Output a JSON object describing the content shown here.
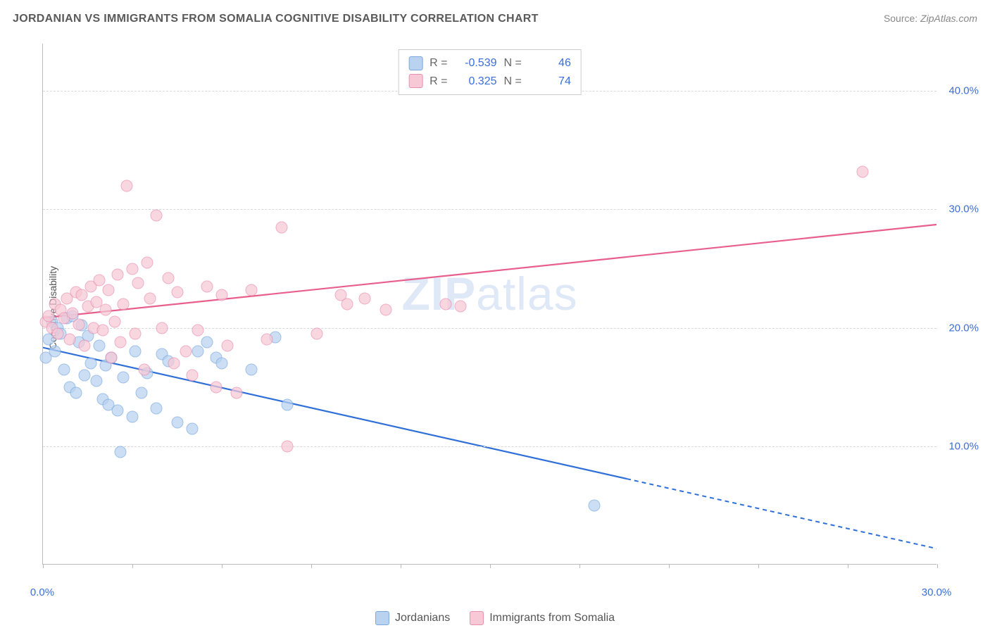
{
  "title": "JORDANIAN VS IMMIGRANTS FROM SOMALIA COGNITIVE DISABILITY CORRELATION CHART",
  "source_prefix": "Source: ",
  "source_name": "ZipAtlas.com",
  "y_axis_label": "Cognitive Disability",
  "watermark_bold": "ZIP",
  "watermark_rest": "atlas",
  "chart": {
    "type": "scatter",
    "background_color": "#ffffff",
    "grid_color": "#d8d8d8",
    "axis_color": "#bbbbbb",
    "tick_label_color": "#3a6fd8",
    "xlim": [
      0,
      30
    ],
    "ylim": [
      0,
      44
    ],
    "x_ticks": [
      0,
      3,
      6,
      9,
      12,
      15,
      18,
      21,
      24,
      27,
      30
    ],
    "x_tick_labels": {
      "0": "0.0%",
      "30": "30.0%"
    },
    "y_gridlines": [
      10,
      20,
      30,
      40
    ],
    "y_tick_labels": {
      "10": "10.0%",
      "20": "20.0%",
      "30": "30.0%",
      "40": "40.0%"
    },
    "series": [
      {
        "key": "jordanians",
        "label": "Jordanians",
        "marker_fill": "#b9d2f0",
        "marker_stroke": "#7aa8de",
        "line_color": "#2e6fd8",
        "swatch_fill": "#b9d2f0",
        "swatch_stroke": "#7aa8de",
        "r_value": "-0.539",
        "n_value": "46",
        "trend": {
          "x1": 0,
          "y1": 18.3,
          "x2": 19.6,
          "y2": 7.2,
          "x2_dash": 30,
          "y2_dash": 1.3
        },
        "points": [
          [
            0.1,
            17.5
          ],
          [
            0.2,
            19.0
          ],
          [
            0.3,
            20.5
          ],
          [
            0.4,
            18.0
          ],
          [
            0.5,
            20.0
          ],
          [
            0.6,
            19.5
          ],
          [
            0.7,
            16.5
          ],
          [
            0.8,
            20.8
          ],
          [
            0.9,
            15.0
          ],
          [
            1.0,
            21.0
          ],
          [
            1.1,
            14.5
          ],
          [
            1.2,
            18.8
          ],
          [
            1.3,
            20.2
          ],
          [
            1.4,
            16.0
          ],
          [
            1.5,
            19.3
          ],
          [
            1.6,
            17.0
          ],
          [
            1.8,
            15.5
          ],
          [
            1.9,
            18.5
          ],
          [
            2.0,
            14.0
          ],
          [
            2.1,
            16.8
          ],
          [
            2.2,
            13.5
          ],
          [
            2.3,
            17.5
          ],
          [
            2.5,
            13.0
          ],
          [
            2.6,
            9.5
          ],
          [
            2.7,
            15.8
          ],
          [
            3.0,
            12.5
          ],
          [
            3.1,
            18.0
          ],
          [
            3.3,
            14.5
          ],
          [
            3.5,
            16.2
          ],
          [
            3.8,
            13.2
          ],
          [
            4.0,
            17.8
          ],
          [
            4.2,
            17.2
          ],
          [
            4.5,
            12.0
          ],
          [
            5.0,
            11.5
          ],
          [
            5.2,
            18.0
          ],
          [
            5.5,
            18.8
          ],
          [
            5.8,
            17.5
          ],
          [
            6.0,
            17.0
          ],
          [
            7.0,
            16.5
          ],
          [
            7.8,
            19.2
          ],
          [
            8.2,
            13.5
          ],
          [
            18.5,
            5.0
          ]
        ]
      },
      {
        "key": "somalia",
        "label": "Immigrants from Somalia",
        "marker_fill": "#f7c8d6",
        "marker_stroke": "#e98fb0",
        "line_color": "#e85f8b",
        "swatch_fill": "#f7c8d6",
        "swatch_stroke": "#e98fb0",
        "r_value": "0.325",
        "n_value": "74",
        "trend": {
          "x1": 0,
          "y1": 20.8,
          "x2": 30,
          "y2": 28.7,
          "x2_dash": null,
          "y2_dash": null
        },
        "points": [
          [
            0.1,
            20.5
          ],
          [
            0.2,
            21.0
          ],
          [
            0.3,
            20.0
          ],
          [
            0.4,
            22.0
          ],
          [
            0.5,
            19.5
          ],
          [
            0.6,
            21.5
          ],
          [
            0.7,
            20.8
          ],
          [
            0.8,
            22.5
          ],
          [
            0.9,
            19.0
          ],
          [
            1.0,
            21.2
          ],
          [
            1.1,
            23.0
          ],
          [
            1.2,
            20.3
          ],
          [
            1.3,
            22.8
          ],
          [
            1.4,
            18.5
          ],
          [
            1.5,
            21.8
          ],
          [
            1.6,
            23.5
          ],
          [
            1.7,
            20.0
          ],
          [
            1.8,
            22.2
          ],
          [
            1.9,
            24.0
          ],
          [
            2.0,
            19.8
          ],
          [
            2.1,
            21.5
          ],
          [
            2.2,
            23.2
          ],
          [
            2.3,
            17.5
          ],
          [
            2.4,
            20.5
          ],
          [
            2.5,
            24.5
          ],
          [
            2.6,
            18.8
          ],
          [
            2.7,
            22.0
          ],
          [
            2.8,
            32.0
          ],
          [
            3.0,
            25.0
          ],
          [
            3.1,
            19.5
          ],
          [
            3.2,
            23.8
          ],
          [
            3.4,
            16.5
          ],
          [
            3.5,
            25.5
          ],
          [
            3.6,
            22.5
          ],
          [
            3.8,
            29.5
          ],
          [
            4.0,
            20.0
          ],
          [
            4.2,
            24.2
          ],
          [
            4.4,
            17.0
          ],
          [
            4.5,
            23.0
          ],
          [
            4.8,
            18.0
          ],
          [
            5.0,
            16.0
          ],
          [
            5.2,
            19.8
          ],
          [
            5.5,
            23.5
          ],
          [
            5.8,
            15.0
          ],
          [
            6.0,
            22.8
          ],
          [
            6.2,
            18.5
          ],
          [
            6.5,
            14.5
          ],
          [
            7.0,
            23.2
          ],
          [
            7.5,
            19.0
          ],
          [
            8.0,
            28.5
          ],
          [
            8.2,
            10.0
          ],
          [
            9.2,
            19.5
          ],
          [
            10.0,
            22.8
          ],
          [
            10.2,
            22.0
          ],
          [
            10.8,
            22.5
          ],
          [
            11.5,
            21.5
          ],
          [
            13.5,
            22.0
          ],
          [
            14.0,
            21.8
          ],
          [
            27.5,
            33.2
          ]
        ]
      }
    ]
  },
  "legend_stats": {
    "r_label": "R =",
    "n_label": "N ="
  }
}
